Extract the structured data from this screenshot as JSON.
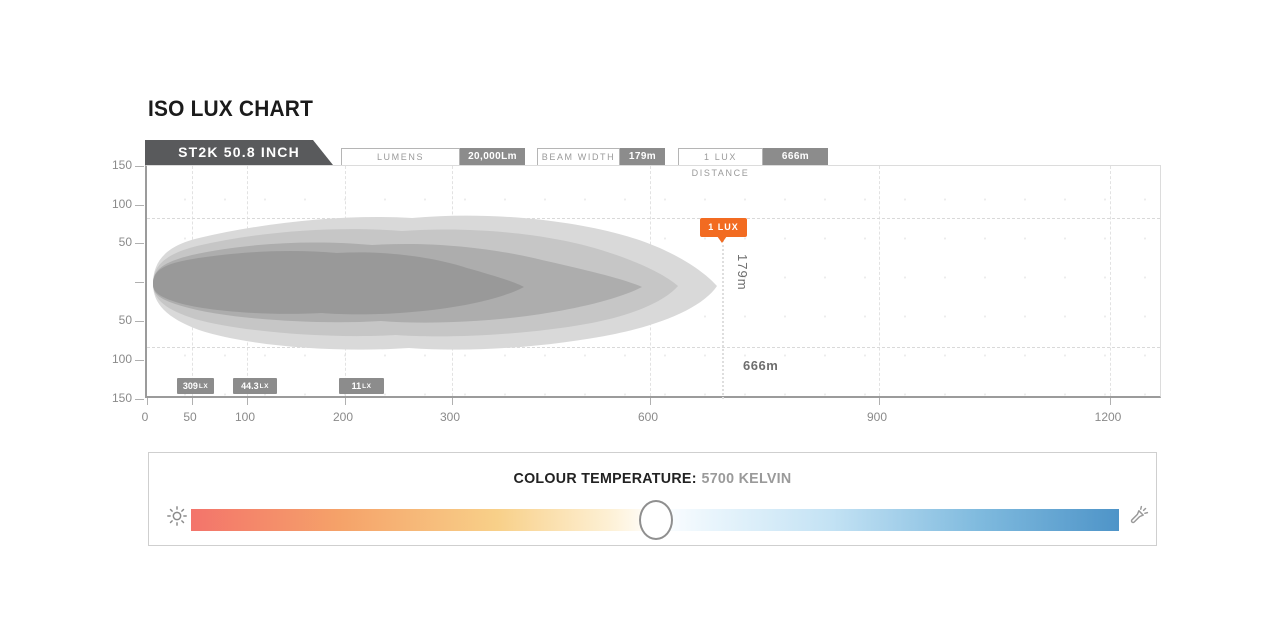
{
  "title": "ISO LUX CHART",
  "product_tab": {
    "label": "ST2K 50.8 INCH"
  },
  "stats": [
    {
      "label": "LUMENS",
      "value": "20,000Lm"
    },
    {
      "label": "BEAM WIDTH",
      "value": "179m"
    },
    {
      "label": "1 LUX DISTANCE",
      "value": "666m"
    }
  ],
  "chart_data": {
    "type": "area",
    "title": "ISO LUX CHART",
    "product": "ST2K 50.8 INCH",
    "description": "Nested iso-lux beam intensity contours for an LED light bar, plotted over distance",
    "x_ticks": [
      "0",
      "50",
      "100",
      "200",
      "300",
      "600",
      "900",
      "1200"
    ],
    "y_ticks": [
      "150",
      "100",
      "50",
      "",
      "50",
      "100",
      "150"
    ],
    "x_unit": "m",
    "y_unit": "m",
    "grid": "dotted",
    "contour_levels": [
      "309Lx",
      "44.3Lx",
      "11Lx",
      "1 LUX"
    ],
    "lux_markers": [
      {
        "value": "309",
        "unit": "LX"
      },
      {
        "value": "44.3",
        "unit": "LX"
      },
      {
        "value": "11",
        "unit": "LX"
      }
    ],
    "one_lux_badge": "1 LUX",
    "beam_width_annotation": "179m",
    "one_lux_distance_annotation": "666m",
    "lumens": "20,000Lm",
    "beam_width_m": "179m",
    "one_lux_distance_m": "666m"
  },
  "colour_temperature": {
    "heading": "COLOUR TEMPERATURE:",
    "value": "5700 KELVIN",
    "left_icon": "sun-icon",
    "right_icon": "flashlight-icon",
    "gradient_left_color": "#f3746b",
    "gradient_right_color": "#4e94c8"
  },
  "colors": {
    "accent_orange": "#f26b21",
    "tab_gray": "#595a5c",
    "chip_gray": "#8c8c8c",
    "contour_grays": [
      "#d9d9d9",
      "#c6c6c6",
      "#adadad",
      "#999999"
    ]
  }
}
